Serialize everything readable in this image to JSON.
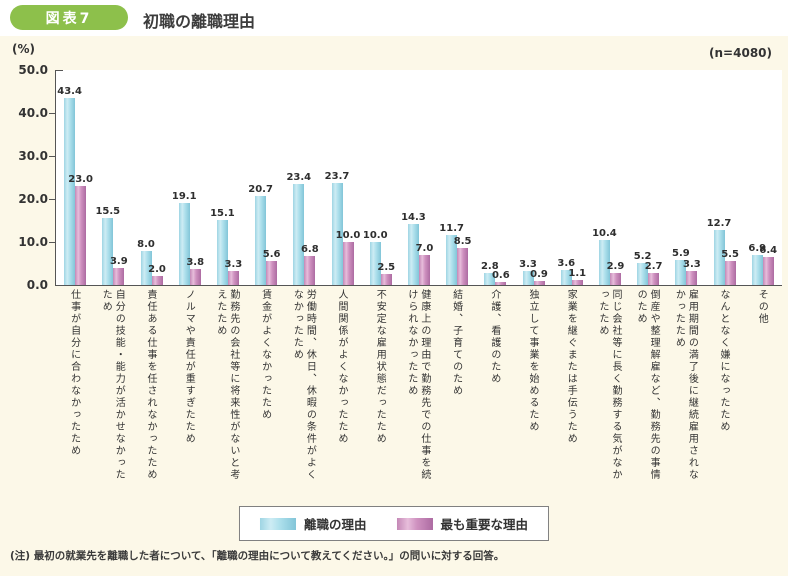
{
  "header": {
    "badge": "図表7",
    "title": "初職の離職理由"
  },
  "unit_label": "(%)",
  "sample_label": "(n=4080)",
  "legend": {
    "items": [
      {
        "label": "離職の理由",
        "color": "#aee0ec"
      },
      {
        "label": "最も重要な理由",
        "color": "#cf92c0"
      }
    ]
  },
  "footnote": "(注) 最初の就業先を離職した者について、「離職の理由について教えてください。」の問いに対する回答。",
  "colors": {
    "badge_green": "#8dc04b",
    "panel_background": "#fcf8e8",
    "bar_blue": "#aee0ec",
    "bar_pink": "#cf92c0"
  },
  "chart_data": {
    "type": "bar",
    "title": "初職の離職理由",
    "n": 4080,
    "ylabel": "(%)",
    "ylim": [
      0,
      50
    ],
    "yticks": [
      0.0,
      10.0,
      20.0,
      30.0,
      40.0,
      50.0
    ],
    "grid": false,
    "legend_position": "bottom",
    "categories": [
      "仕事が自分に合わなかったため",
      "自分の技能・能力が活かせなかったため",
      "責任ある仕事を任されなかったため",
      "ノルマや責任が重すぎたため",
      "勤務先の会社等に将来性がないと考えたため",
      "賃金がよくなかったため",
      "労働時間、休日、休暇の条件がよくなかったため",
      "人間関係がよくなかったため",
      "不安定な雇用状態だったため",
      "健康上の理由で勤務先での仕事を続けられなかったため",
      "結婚、子育てのため",
      "介護、看護のため",
      "独立して事業を始めるため",
      "家業を継ぐまたは手伝うため",
      "同じ会社等に長く勤務する気がなかったため",
      "倒産や整理解雇など、勤務先の事情のため",
      "雇用期間の満了後に継続雇用されなかったため",
      "なんとなく嫌になったため",
      "その他"
    ],
    "series": [
      {
        "name": "離職の理由",
        "values": [
          43.4,
          15.5,
          8.0,
          19.1,
          15.1,
          20.7,
          23.4,
          23.7,
          10.0,
          14.3,
          11.7,
          2.8,
          3.3,
          3.6,
          10.4,
          5.2,
          5.9,
          12.7,
          6.9
        ]
      },
      {
        "name": "最も重要な理由",
        "values": [
          23.0,
          3.9,
          2.0,
          3.8,
          3.3,
          5.6,
          6.8,
          10.0,
          2.5,
          7.0,
          8.5,
          0.6,
          0.9,
          1.1,
          2.9,
          2.7,
          3.3,
          5.5,
          6.4
        ]
      }
    ]
  }
}
